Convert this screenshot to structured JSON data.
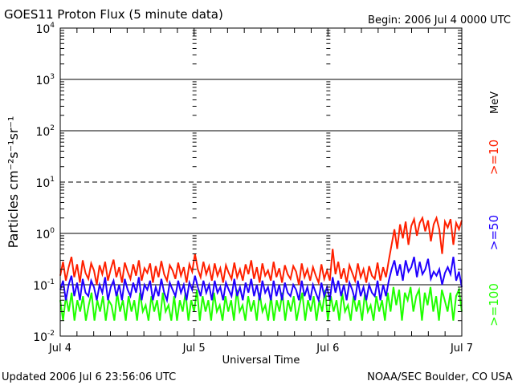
{
  "chart_data": {
    "type": "line",
    "title": "GOES11 Proton Flux (5 minute data)",
    "subtitle": "Begin: 2006 Jul 4 0000 UTC",
    "xlabel": "Universal Time",
    "ylabel": "Particles cm⁻²s⁻¹sr⁻¹",
    "yscale": "log",
    "ylim": [
      0.01,
      10000
    ],
    "xlim_days": [
      0,
      3
    ],
    "x_tick_labels": [
      "Jul 4",
      "Jul 5",
      "Jul 6",
      "Jul 7"
    ],
    "y_tick_labels": [
      {
        "base": "10",
        "exp": "4"
      },
      {
        "base": "10",
        "exp": "3"
      },
      {
        "base": "10",
        "exp": "2"
      },
      {
        "base": "10",
        "exp": "1"
      },
      {
        "base": "10",
        "exp": "0"
      },
      {
        "base": "10",
        "exp": "-1"
      },
      {
        "base": "10",
        "exp": "-2"
      }
    ],
    "units_label": "MeV",
    "series": [
      {
        "name": ">=10",
        "color": "#ff2000",
        "values": [
          0.15,
          0.28,
          0.12,
          0.22,
          0.35,
          0.14,
          0.25,
          0.11,
          0.3,
          0.17,
          0.13,
          0.26,
          0.19,
          0.1,
          0.24,
          0.16,
          0.28,
          0.12,
          0.2,
          0.31,
          0.14,
          0.22,
          0.11,
          0.27,
          0.18,
          0.13,
          0.25,
          0.15,
          0.3,
          0.12,
          0.21,
          0.17,
          0.26,
          0.11,
          0.23,
          0.14,
          0.29,
          0.16,
          0.12,
          0.24,
          0.19,
          0.13,
          0.27,
          0.15,
          0.22,
          0.11,
          0.25,
          0.18,
          0.4,
          0.2,
          0.14,
          0.28,
          0.16,
          0.23,
          0.12,
          0.26,
          0.15,
          0.21,
          0.11,
          0.24,
          0.17,
          0.13,
          0.27,
          0.14,
          0.2,
          0.12,
          0.25,
          0.16,
          0.3,
          0.13,
          0.22,
          0.11,
          0.26,
          0.15,
          0.19,
          0.12,
          0.28,
          0.14,
          0.21,
          0.11,
          0.24,
          0.16,
          0.13,
          0.23,
          0.18,
          0.1,
          0.26,
          0.14,
          0.2,
          0.12,
          0.22,
          0.15,
          0.11,
          0.25,
          0.13,
          0.19,
          0.12,
          0.5,
          0.16,
          0.28,
          0.13,
          0.21,
          0.11,
          0.24,
          0.17,
          0.12,
          0.26,
          0.14,
          0.2,
          0.11,
          0.23,
          0.15,
          0.13,
          0.27,
          0.12,
          0.22,
          0.14,
          0.3,
          0.6,
          1.2,
          0.5,
          1.5,
          0.8,
          1.7,
          0.6,
          1.4,
          1.9,
          0.9,
          1.6,
          2.0,
          1.1,
          1.8,
          0.7,
          1.5,
          2.0,
          1.2,
          0.4,
          1.7,
          1.3,
          1.9,
          0.6,
          1.6,
          1.2,
          1.8
        ]
      },
      {
        "name": ">=50",
        "color": "#2000ff",
        "values": [
          0.08,
          0.12,
          0.05,
          0.1,
          0.15,
          0.06,
          0.11,
          0.05,
          0.13,
          0.07,
          0.06,
          0.12,
          0.09,
          0.05,
          0.1,
          0.07,
          0.14,
          0.05,
          0.09,
          0.12,
          0.06,
          0.1,
          0.05,
          0.13,
          0.08,
          0.06,
          0.11,
          0.07,
          0.14,
          0.05,
          0.1,
          0.08,
          0.12,
          0.05,
          0.09,
          0.06,
          0.13,
          0.07,
          0.05,
          0.11,
          0.08,
          0.06,
          0.12,
          0.07,
          0.1,
          0.05,
          0.11,
          0.08,
          0.15,
          0.09,
          0.06,
          0.12,
          0.07,
          0.1,
          0.05,
          0.12,
          0.07,
          0.09,
          0.05,
          0.11,
          0.08,
          0.06,
          0.13,
          0.06,
          0.09,
          0.05,
          0.11,
          0.07,
          0.13,
          0.06,
          0.1,
          0.05,
          0.12,
          0.07,
          0.09,
          0.05,
          0.12,
          0.06,
          0.1,
          0.05,
          0.11,
          0.07,
          0.06,
          0.1,
          0.08,
          0.05,
          0.12,
          0.06,
          0.09,
          0.05,
          0.1,
          0.07,
          0.05,
          0.11,
          0.06,
          0.09,
          0.05,
          0.14,
          0.07,
          0.12,
          0.06,
          0.1,
          0.05,
          0.11,
          0.08,
          0.05,
          0.12,
          0.06,
          0.09,
          0.05,
          0.1,
          0.07,
          0.06,
          0.12,
          0.05,
          0.1,
          0.06,
          0.12,
          0.2,
          0.3,
          0.15,
          0.25,
          0.12,
          0.3,
          0.18,
          0.22,
          0.35,
          0.14,
          0.28,
          0.16,
          0.2,
          0.32,
          0.13,
          0.18,
          0.15,
          0.2,
          0.1,
          0.17,
          0.22,
          0.16,
          0.35,
          0.12,
          0.18,
          0.09
        ]
      },
      {
        "name": ">=100",
        "color": "#20ff00",
        "values": [
          0.05,
          0.02,
          0.06,
          0.03,
          0.07,
          0.02,
          0.05,
          0.03,
          0.06,
          0.02,
          0.04,
          0.07,
          0.02,
          0.05,
          0.03,
          0.06,
          0.02,
          0.05,
          0.04,
          0.02,
          0.07,
          0.03,
          0.05,
          0.02,
          0.06,
          0.03,
          0.05,
          0.02,
          0.07,
          0.03,
          0.04,
          0.02,
          0.06,
          0.03,
          0.05,
          0.02,
          0.07,
          0.03,
          0.04,
          0.02,
          0.06,
          0.02,
          0.05,
          0.03,
          0.07,
          0.02,
          0.05,
          0.03,
          0.08,
          0.02,
          0.06,
          0.03,
          0.05,
          0.02,
          0.07,
          0.03,
          0.04,
          0.02,
          0.06,
          0.03,
          0.05,
          0.02,
          0.08,
          0.03,
          0.04,
          0.02,
          0.06,
          0.03,
          0.05,
          0.02,
          0.07,
          0.03,
          0.04,
          0.02,
          0.06,
          0.02,
          0.05,
          0.03,
          0.07,
          0.02,
          0.05,
          0.03,
          0.06,
          0.02,
          0.04,
          0.07,
          0.02,
          0.05,
          0.03,
          0.06,
          0.02,
          0.05,
          0.03,
          0.08,
          0.02,
          0.06,
          0.03,
          0.05,
          0.02,
          0.07,
          0.03,
          0.04,
          0.02,
          0.06,
          0.03,
          0.05,
          0.02,
          0.07,
          0.03,
          0.04,
          0.02,
          0.06,
          0.03,
          0.05,
          0.02,
          0.07,
          0.03,
          0.09,
          0.04,
          0.08,
          0.02,
          0.07,
          0.05,
          0.09,
          0.03,
          0.06,
          0.08,
          0.02,
          0.07,
          0.04,
          0.09,
          0.03,
          0.06,
          0.02,
          0.08,
          0.05,
          0.03,
          0.07,
          0.02,
          0.06,
          0.08,
          0.03
        ]
      }
    ]
  },
  "footer": {
    "updated": "Updated 2006 Jul  6 23:56:06 UTC",
    "source": "NOAA/SEC Boulder, CO USA"
  }
}
